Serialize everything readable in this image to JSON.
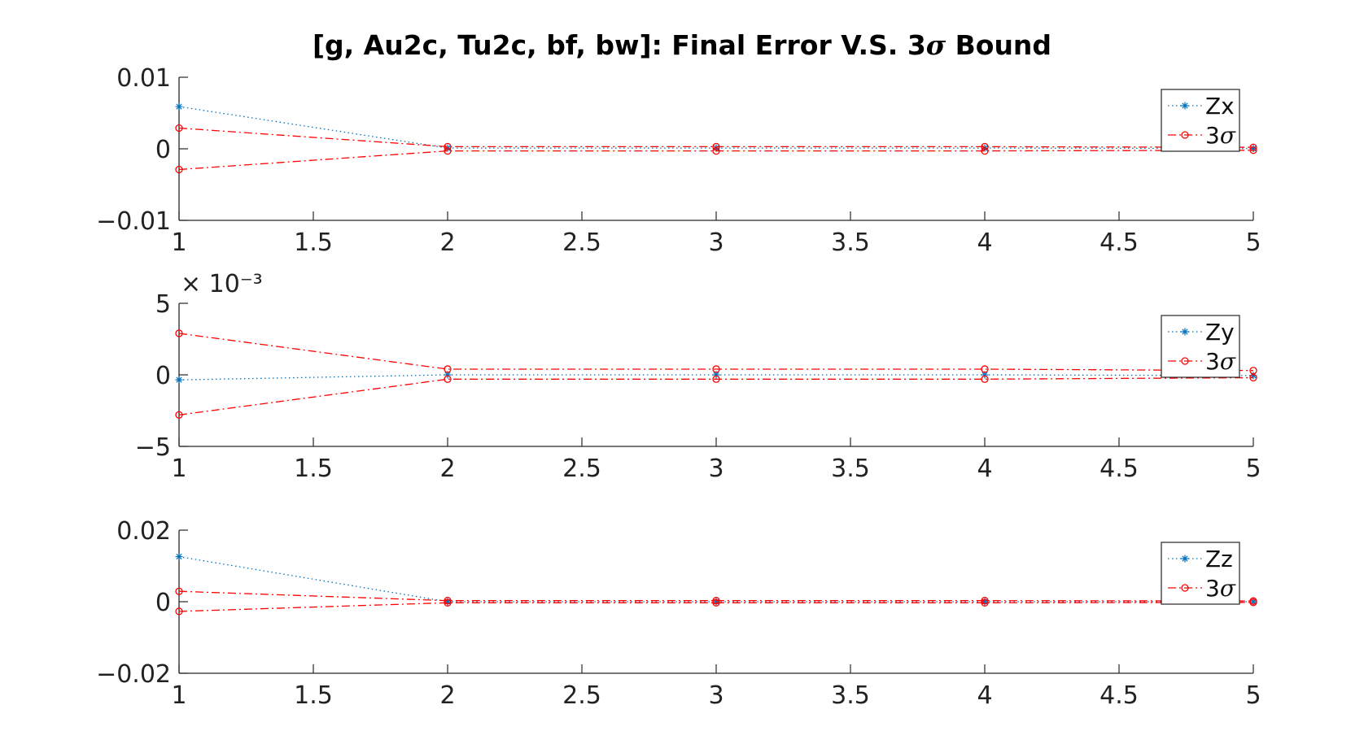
{
  "figure": {
    "title_prefix": "[g, Au2c, Tu2c, bf, bw]: Final Error V.S. 3",
    "title_sigma": "σ",
    "title_suffix": " Bound"
  },
  "colors": {
    "error_series": "#0072BD",
    "bound_series": "#FF0000",
    "axis": "#262626",
    "background": "#FFFFFF"
  },
  "chart_data": [
    {
      "type": "line",
      "x": [
        1,
        2,
        3,
        4,
        5
      ],
      "xlim": [
        1,
        5
      ],
      "ylim": [
        -0.01,
        0.01
      ],
      "xticks": [
        "1",
        "1.5",
        "2",
        "2.5",
        "3",
        "3.5",
        "4",
        "4.5",
        "5"
      ],
      "yticks": [
        "0.01",
        "0",
        "−0.01"
      ],
      "exponent_label": "",
      "legend_position": "top-right",
      "series": [
        {
          "name": "Zx",
          "style": "dotted",
          "marker": "asterisk",
          "values": [
            0.0059,
            0.0001,
            0.0001,
            0.0001,
            5e-05
          ]
        },
        {
          "name": "3σ",
          "style": "dash-dot",
          "marker": "circle",
          "values": [
            0.0029,
            0.0003,
            0.0003,
            0.0003,
            0.0002
          ]
        },
        {
          "name": "",
          "style": "dash-dot",
          "marker": "circle",
          "values": [
            -0.0029,
            -0.0003,
            -0.0003,
            -0.0003,
            -0.0002
          ]
        }
      ]
    },
    {
      "type": "line",
      "x": [
        1,
        2,
        3,
        4,
        5
      ],
      "xlim": [
        1,
        5
      ],
      "ylim": [
        -0.005,
        0.005
      ],
      "xticks": [
        "1",
        "1.5",
        "2",
        "2.5",
        "3",
        "3.5",
        "4",
        "4.5",
        "5"
      ],
      "yticks": [
        "5",
        "0",
        "−5"
      ],
      "exponent_label": "× 10⁻³",
      "legend_position": "top-right",
      "series": [
        {
          "name": "Zy",
          "style": "dotted",
          "marker": "asterisk",
          "values": [
            -0.00035,
            0.0,
            0.0,
            0.0,
            -5e-05
          ]
        },
        {
          "name": "3σ",
          "style": "dash-dot",
          "marker": "circle",
          "values": [
            0.0029,
            0.0004,
            0.0004,
            0.0004,
            0.0003
          ]
        },
        {
          "name": "",
          "style": "dash-dot",
          "marker": "circle",
          "values": [
            -0.0028,
            -0.0003,
            -0.0003,
            -0.0003,
            -0.0002
          ]
        }
      ]
    },
    {
      "type": "line",
      "x": [
        1,
        2,
        3,
        4,
        5
      ],
      "xlim": [
        1,
        5
      ],
      "ylim": [
        -0.02,
        0.02
      ],
      "xticks": [
        "1",
        "1.5",
        "2",
        "2.5",
        "3",
        "3.5",
        "4",
        "4.5",
        "5"
      ],
      "yticks": [
        "0.02",
        "0",
        "−0.02"
      ],
      "exponent_label": "",
      "legend_position": "top-right",
      "series": [
        {
          "name": "Zz",
          "style": "dotted",
          "marker": "asterisk",
          "values": [
            0.0126,
            0.0,
            0.0,
            0.0,
            0.0
          ]
        },
        {
          "name": "3σ",
          "style": "dash-dot",
          "marker": "circle",
          "values": [
            0.0029,
            0.0003,
            0.0003,
            0.0003,
            0.0002
          ]
        },
        {
          "name": "",
          "style": "dash-dot",
          "marker": "circle",
          "values": [
            -0.0027,
            -0.0003,
            -0.0003,
            -0.0003,
            -0.0002
          ]
        }
      ]
    }
  ]
}
